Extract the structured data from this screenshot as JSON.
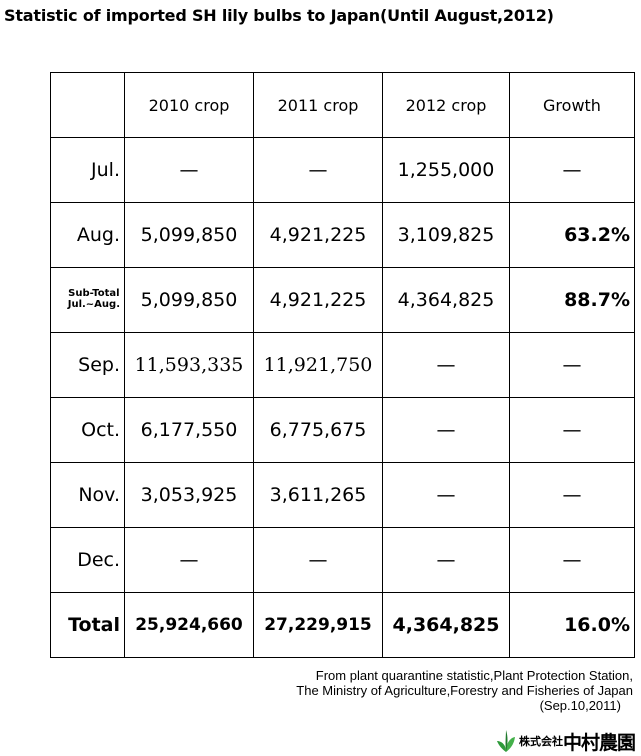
{
  "title": "Statistic of imported SH lily bulbs to Japan(Until August,2012)",
  "table": {
    "headers": [
      "",
      "2010 crop",
      "2011 crop",
      "2012 crop",
      "Growth"
    ],
    "rows": [
      {
        "label": "Jul.",
        "c2010": "—",
        "c2011": "—",
        "c2012": "1,255,000",
        "growth": "—"
      },
      {
        "label": "Aug.",
        "c2010": "5,099,850",
        "c2011": "4,921,225",
        "c2012": "3,109,825",
        "growth": "63.2%"
      },
      {
        "label_line1": "Sub-Total",
        "label_line2": "Jul.~Aug.",
        "c2010": "5,099,850",
        "c2011": "4,921,225",
        "c2012": "4,364,825",
        "growth": "88.7%"
      },
      {
        "label": "Sep.",
        "c2010": "11,593,335",
        "c2011": "11,921,750",
        "c2012": "—",
        "growth": "—"
      },
      {
        "label": "Oct.",
        "c2010": "6,177,550",
        "c2011": "6,775,675",
        "c2012": "—",
        "growth": "—"
      },
      {
        "label": "Nov.",
        "c2010": "3,053,925",
        "c2011": "3,611,265",
        "c2012": "—",
        "growth": "—"
      },
      {
        "label": "Dec.",
        "c2010": "—",
        "c2011": "—",
        "c2012": "—",
        "growth": "—"
      },
      {
        "label": "Total",
        "c2010": "25,924,660",
        "c2011": "27,229,915",
        "c2012": "4,364,825",
        "growth": "16.0%"
      }
    ]
  },
  "source": {
    "line1": "From plant quarantine statistic,Plant Protection Station,",
    "line2": "The Ministry of Agriculture,Forestry and Fisheries of Japan",
    "date": "(Sep.10,2011)"
  },
  "logo": {
    "small_text": "株式会社",
    "big_text": "中村農園",
    "icon": "leaf-logo-icon",
    "green": "#2e9a3a"
  }
}
